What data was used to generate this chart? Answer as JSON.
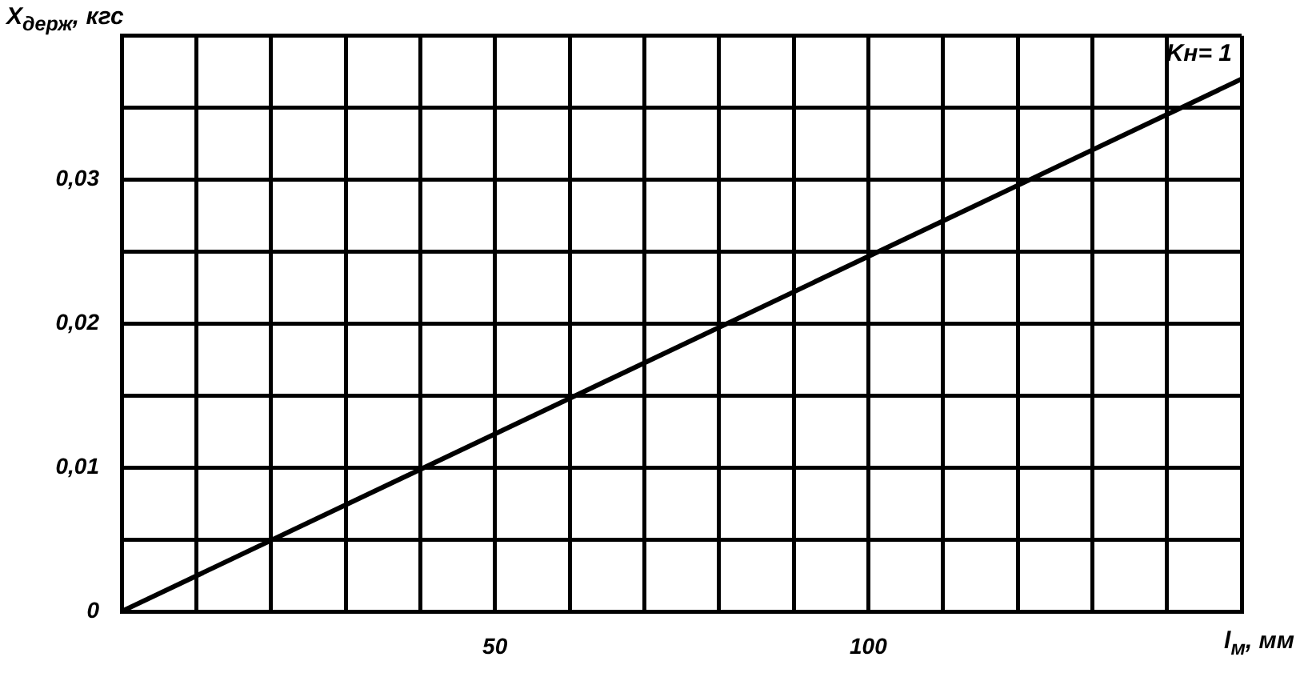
{
  "chart_data": {
    "type": "line",
    "xlabel": "l$_{м}$, мм",
    "ylabel": "X$_{держ}$, кгс",
    "x": [
      0,
      150
    ],
    "series": [
      {
        "name": "Kн= 1",
        "color": "#000000",
        "values": [
          0,
          0.037
        ]
      }
    ],
    "xlim": [
      0,
      150
    ],
    "xticks": [
      {
        "value": 0,
        "label": null
      },
      {
        "value": 10,
        "label": null
      },
      {
        "value": 20,
        "label": null
      },
      {
        "value": 30,
        "label": null
      },
      {
        "value": 40,
        "label": null
      },
      50,
      {
        "value": 60,
        "label": null
      },
      {
        "value": 70,
        "label": null
      },
      {
        "value": 80,
        "label": null
      },
      {
        "value": 90,
        "label": null
      },
      100,
      {
        "value": 110,
        "label": null
      },
      {
        "value": 120,
        "label": null
      },
      {
        "value": 130,
        "label": null
      },
      {
        "value": 140,
        "label": null
      },
      {
        "value": 150,
        "label": null
      }
    ],
    "ylim": [
      0,
      0.04
    ],
    "yticks": [
      {
        "value": 0,
        "label": "0"
      },
      {
        "value": 0.005,
        "label": null
      },
      {
        "value": 0.01,
        "label": "0,01"
      },
      {
        "value": 0.015,
        "label": null
      },
      {
        "value": 0.02,
        "label": "0,02"
      },
      {
        "value": 0.025,
        "label": null
      },
      {
        "value": 0.03,
        "label": "0,03"
      },
      {
        "value": 0.035,
        "label": null
      },
      {
        "value": 0.04,
        "label": null
      }
    ],
    "grid": true,
    "marker": "none",
    "line_style": "solid"
  }
}
